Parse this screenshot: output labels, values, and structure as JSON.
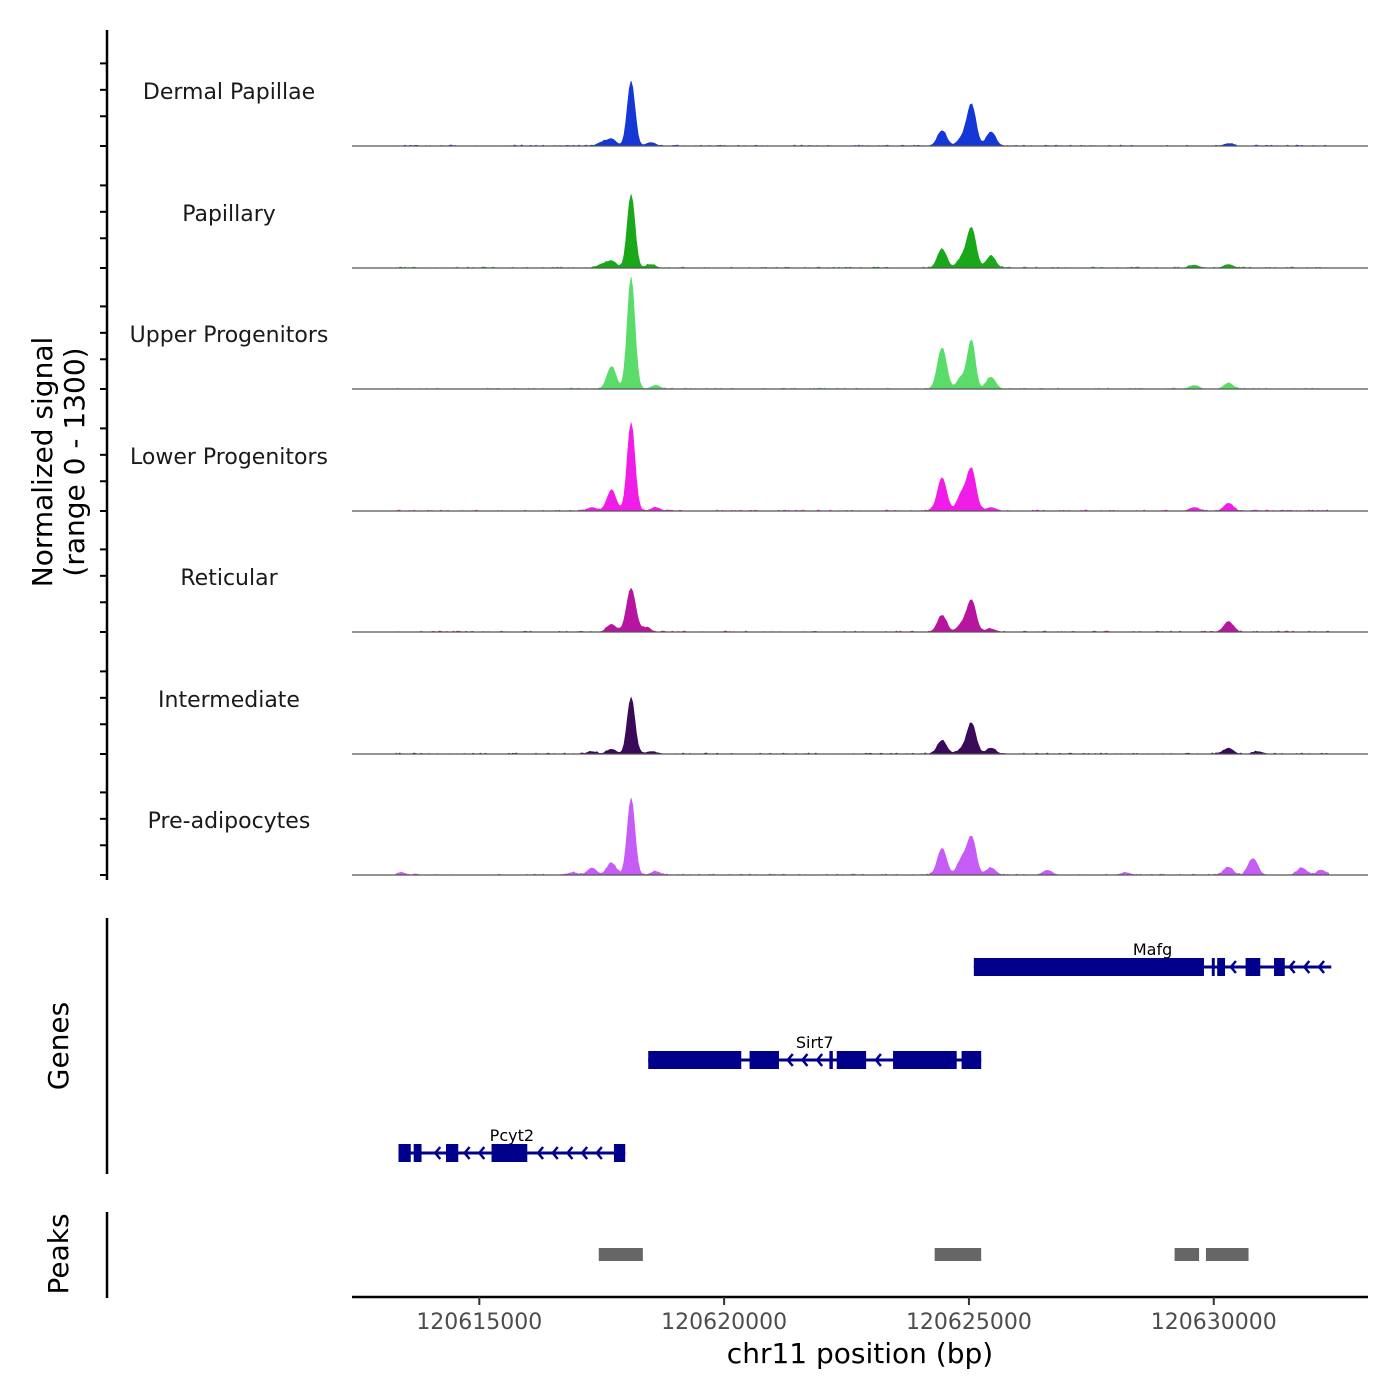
{
  "chart_data": {
    "type": "area",
    "title": "",
    "ylabel": "Normalized signal\n(range 0 - 1300)",
    "ylabel_lines": [
      "Normalized signal",
      "(range 0 - 1300)"
    ],
    "xlabel": "chr11 position (bp)",
    "xlim": [
      120612400,
      120633150
    ],
    "ylim": [
      0,
      1300
    ],
    "x_ticks": [
      120615000,
      120620000,
      120625000,
      120630000
    ],
    "x_tick_labels": [
      "120615000",
      "120620000",
      "120625000",
      "120630000"
    ],
    "grid": false,
    "series": [
      {
        "name": "Dermal Papillae",
        "color": "#1437D6",
        "peaks": [
          [
            120617500,
            60
          ],
          [
            120617700,
            120
          ],
          [
            120618100,
            1100
          ],
          [
            120618500,
            60
          ],
          [
            120624450,
            260
          ],
          [
            120624850,
            120
          ],
          [
            120625050,
            700
          ],
          [
            120625450,
            240
          ],
          [
            120630300,
            40
          ]
        ]
      },
      {
        "name": "Papillary",
        "color": "#1AA81A",
        "peaks": [
          [
            120617500,
            60
          ],
          [
            120617700,
            120
          ],
          [
            120618100,
            1250
          ],
          [
            120618500,
            60
          ],
          [
            120624450,
            320
          ],
          [
            120624850,
            150
          ],
          [
            120625050,
            680
          ],
          [
            120625450,
            200
          ],
          [
            120629600,
            50
          ],
          [
            120630300,
            60
          ]
        ]
      },
      {
        "name": "Upper Progenitors",
        "color": "#5BDB6A",
        "peaks": [
          [
            120617700,
            380
          ],
          [
            120618100,
            1900
          ],
          [
            120618600,
            60
          ],
          [
            120624450,
            700
          ],
          [
            120624850,
            200
          ],
          [
            120625050,
            820
          ],
          [
            120625450,
            200
          ],
          [
            120629600,
            60
          ],
          [
            120630300,
            100
          ]
        ]
      },
      {
        "name": "Lower Progenitors",
        "color": "#F01DE8",
        "peaks": [
          [
            120617300,
            60
          ],
          [
            120617700,
            350
          ],
          [
            120618100,
            1500
          ],
          [
            120618600,
            60
          ],
          [
            120624450,
            560
          ],
          [
            120624850,
            280
          ],
          [
            120625050,
            700
          ],
          [
            120625450,
            60
          ],
          [
            120629600,
            60
          ],
          [
            120630300,
            130
          ]
        ]
      },
      {
        "name": "Reticular",
        "color": "#B7149F",
        "peaks": [
          [
            120617700,
            130
          ],
          [
            120618100,
            740
          ],
          [
            120618400,
            70
          ],
          [
            120624450,
            280
          ],
          [
            120624850,
            120
          ],
          [
            120625050,
            540
          ],
          [
            120625450,
            50
          ],
          [
            120630300,
            180
          ]
        ]
      },
      {
        "name": "Intermediate",
        "color": "#3A0A5A",
        "peaks": [
          [
            120617300,
            40
          ],
          [
            120617700,
            80
          ],
          [
            120618100,
            960
          ],
          [
            120618500,
            40
          ],
          [
            120624450,
            230
          ],
          [
            120624850,
            70
          ],
          [
            120625050,
            520
          ],
          [
            120625450,
            100
          ],
          [
            120630300,
            100
          ],
          [
            120630900,
            40
          ]
        ]
      },
      {
        "name": "Pre-adipocytes",
        "color": "#C55CF5",
        "peaks": [
          [
            120613400,
            40
          ],
          [
            120616900,
            40
          ],
          [
            120617300,
            120
          ],
          [
            120617700,
            200
          ],
          [
            120618100,
            1300
          ],
          [
            120618600,
            60
          ],
          [
            120624450,
            450
          ],
          [
            120624850,
            250
          ],
          [
            120625050,
            640
          ],
          [
            120625450,
            120
          ],
          [
            120626600,
            80
          ],
          [
            120628200,
            40
          ],
          [
            120630300,
            130
          ],
          [
            120630800,
            280
          ],
          [
            120631800,
            120
          ],
          [
            120632200,
            80
          ]
        ]
      }
    ],
    "genes": {
      "label": "Genes",
      "color": "#00008B",
      "items": [
        {
          "name": "Mafg",
          "strand": "-",
          "row": 0,
          "start": 120625100,
          "end": 120632400,
          "exons": [
            [
              120625100,
              120629800
            ],
            [
              120629960,
              120630020
            ],
            [
              120630070,
              120630230
            ],
            [
              120630650,
              120630950
            ],
            [
              120631230,
              120631450
            ]
          ]
        },
        {
          "name": "Sirt7",
          "strand": "-",
          "row": 1,
          "start": 120618450,
          "end": 120625250,
          "exons": [
            [
              120618450,
              120620350
            ],
            [
              120620520,
              120621120
            ],
            [
              120622150,
              120622220
            ],
            [
              120622300,
              120622900
            ],
            [
              120623450,
              120624750
            ],
            [
              120624850,
              120625250
            ]
          ]
        },
        {
          "name": "Pcyt2",
          "strand": "-",
          "row": 2,
          "start": 120613350,
          "end": 120617980,
          "exons": [
            [
              120613350,
              120613600
            ],
            [
              120613660,
              120613820
            ],
            [
              120614320,
              120614570
            ],
            [
              120615250,
              120615980
            ],
            [
              120617750,
              120617980
            ]
          ]
        }
      ]
    },
    "peaks_track": {
      "label": "Peaks",
      "color": "#666666",
      "regions": [
        [
          120617440,
          120618340
        ],
        [
          120624300,
          120625250
        ],
        [
          120629200,
          120629700
        ],
        [
          120629840,
          120630710
        ]
      ]
    }
  }
}
